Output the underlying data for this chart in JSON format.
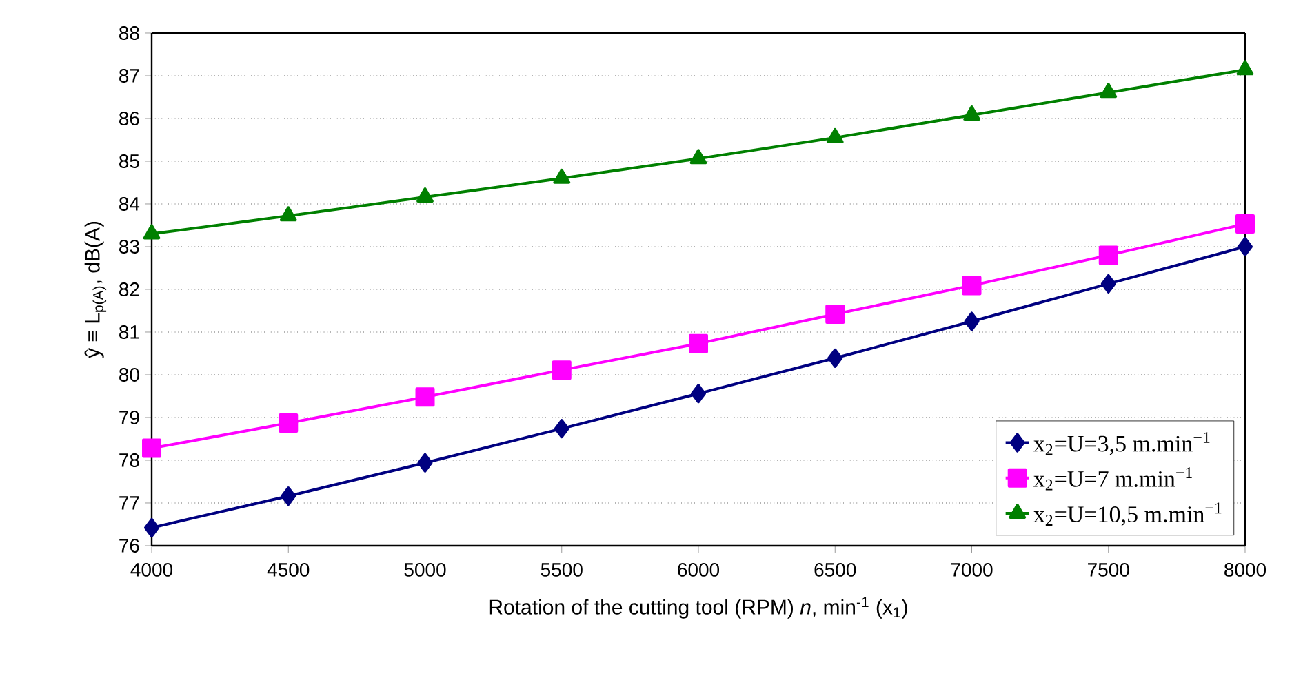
{
  "chart_data": {
    "type": "line",
    "xlabel": "Rotation of the cutting tool (RPM) *n*, min$^{-1}$ (x$_{1}$)",
    "ylabel": "ŷ ≡ L$_{p(A)}$, dB(A)",
    "x": [
      4000,
      4500,
      5000,
      5500,
      6000,
      6500,
      7000,
      7500,
      8000
    ],
    "xlim": [
      4000,
      8000
    ],
    "xticks": [
      4000,
      4500,
      5000,
      5500,
      6000,
      6500,
      7000,
      7500,
      8000
    ],
    "ylim": [
      76,
      88
    ],
    "yticks": [
      76,
      77,
      78,
      79,
      80,
      81,
      82,
      83,
      84,
      85,
      86,
      87,
      88
    ],
    "grid": "y",
    "legend": "bottom right",
    "line_style": "solid",
    "series": [
      {
        "name": "x$_{2}$=U=3,5 m.min$^{−1}$",
        "color": "#000080",
        "marker": "diamond",
        "values": [
          76.42,
          77.16,
          77.94,
          78.74,
          79.56,
          80.39,
          81.25,
          82.13,
          83.0
        ]
      },
      {
        "name": "x$_{2}$=U=7 m.min$^{−1}$",
        "color": "#ff00ff",
        "marker": "square",
        "values": [
          78.28,
          78.87,
          79.48,
          80.11,
          80.73,
          81.42,
          82.09,
          82.8,
          83.53
        ]
      },
      {
        "name": "x$_{2}$=U=10,5 m.min$^{−1}$",
        "color": "#008000",
        "marker": "triangle",
        "values": [
          83.3,
          83.72,
          84.16,
          84.6,
          85.06,
          85.55,
          86.08,
          86.61,
          87.14
        ]
      }
    ]
  }
}
